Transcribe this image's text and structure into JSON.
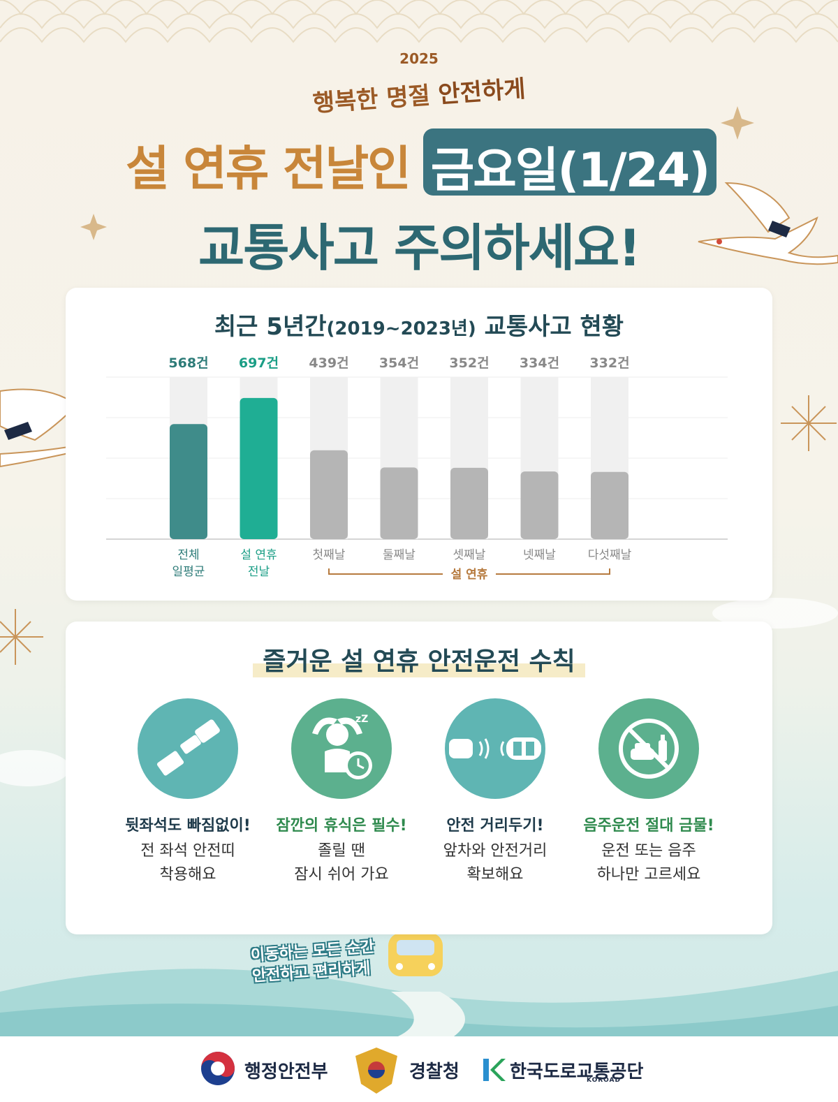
{
  "header": {
    "year": "2025",
    "subheading_part1": "행복한 명절 ",
    "subheading_part2": "안전하게",
    "title_line1": "설 연휴 전날인",
    "title_highlight": "금요일(1/24)",
    "title_line2": "교통사고 주의하세요!"
  },
  "colors": {
    "title_gold": "#c8863a",
    "title_teal": "#2d6872",
    "highlight_box": "#3b7480",
    "bar_average": "#3f8c8a",
    "bar_eve": "#1fae94",
    "bar_holiday": "#b5b5b5",
    "bracket": "#b67a3e"
  },
  "chart": {
    "title_main": "최근 5년간",
    "title_period": "(2019~2023년)",
    "title_tail": " 교통사고 현황",
    "bracket_label": "설 연휴"
  },
  "chart_data": {
    "type": "bar",
    "title": "최근 5년간(2019~2023년) 교통사고 현황",
    "categories": [
      "전체 일평균",
      "설 연휴 전날",
      "첫째날",
      "둘째날",
      "셋째날",
      "넷째날",
      "다섯째날"
    ],
    "category_lines": [
      [
        "전체",
        "일평균"
      ],
      [
        "설 연휴",
        "전날"
      ],
      [
        "첫째날"
      ],
      [
        "둘째날"
      ],
      [
        "셋째날"
      ],
      [
        "넷째날"
      ],
      [
        "다섯째날"
      ]
    ],
    "values": [
      568,
      697,
      439,
      354,
      352,
      334,
      332
    ],
    "value_labels": [
      "568건",
      "697건",
      "439건",
      "354건",
      "352건",
      "334건",
      "332건"
    ],
    "bar_colors": [
      "#3f8c8a",
      "#1fae94",
      "#b5b5b5",
      "#b5b5b5",
      "#b5b5b5",
      "#b5b5b5",
      "#b5b5b5"
    ],
    "label_colors": [
      "#2d7b78",
      "#1b9e86",
      "#888888",
      "#888888",
      "#888888",
      "#888888",
      "#888888"
    ],
    "ylim": [
      0,
      800
    ],
    "grid": true,
    "group_bracket": {
      "label": "설 연휴",
      "from_index": 2,
      "to_index": 6
    }
  },
  "rules": {
    "title": "즐거운 설 연휴 안전운전 수칙",
    "tips": [
      {
        "icon": "seatbelt-icon",
        "color": "#5fb5b3",
        "head_color": "#1e3a4a",
        "head": "뒷좌석도 빠짐없이!",
        "line1": "전 좌석 안전띠",
        "line2": "착용해요"
      },
      {
        "icon": "rest-clock-icon",
        "color": "#5cb08e",
        "head_color": "#2f8a4e",
        "head": "잠깐의 휴식은 필수!",
        "line1": "졸릴 땐",
        "line2": "잠시 쉬어 가요"
      },
      {
        "icon": "car-distance-icon",
        "color": "#5fb5b3",
        "head_color": "#1e3a4a",
        "head": "안전 거리두기!",
        "line1": "앞차와 안전거리",
        "line2": "확보해요"
      },
      {
        "icon": "no-drunk-driving-icon",
        "color": "#5cb08e",
        "head_color": "#2f8a4e",
        "head": "음주운전 절대 금물!",
        "line1": "운전 또는 음주",
        "line2": "하나만 고르세요"
      }
    ]
  },
  "slogan": {
    "line1": "이동하는 모든 순간",
    "line2": "안전하고 편리하게"
  },
  "footer": {
    "org1": "행정안전부",
    "org2": "경찰청",
    "org3": "한국도로교통공단",
    "org3_en": "KOROAD"
  }
}
